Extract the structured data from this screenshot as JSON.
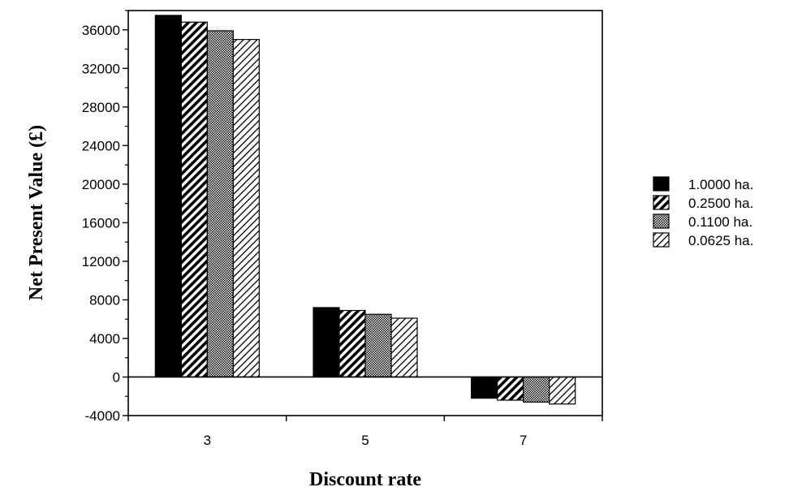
{
  "chart_data": {
    "type": "bar",
    "xlabel": "Discount rate",
    "ylabel": "Net Present Value (£)",
    "categories": [
      "3",
      "5",
      "7"
    ],
    "ylim": [
      -4000,
      38000
    ],
    "yticks": [
      -4000,
      0,
      4000,
      8000,
      12000,
      16000,
      20000,
      24000,
      28000,
      32000,
      36000
    ],
    "grid": false,
    "legend_position": "right",
    "series": [
      {
        "name": "1.0000 ha.",
        "values": [
          37500,
          7200,
          -2200
        ],
        "pattern": "solid-black"
      },
      {
        "name": "0.2500 ha.",
        "values": [
          36800,
          6900,
          -2400
        ],
        "pattern": "diagonal-dense"
      },
      {
        "name": "0.1100 ha.",
        "values": [
          35900,
          6500,
          -2600
        ],
        "pattern": "dots"
      },
      {
        "name": "0.0625 ha.",
        "values": [
          35000,
          6100,
          -2800
        ],
        "pattern": "diagonal-light"
      }
    ]
  }
}
